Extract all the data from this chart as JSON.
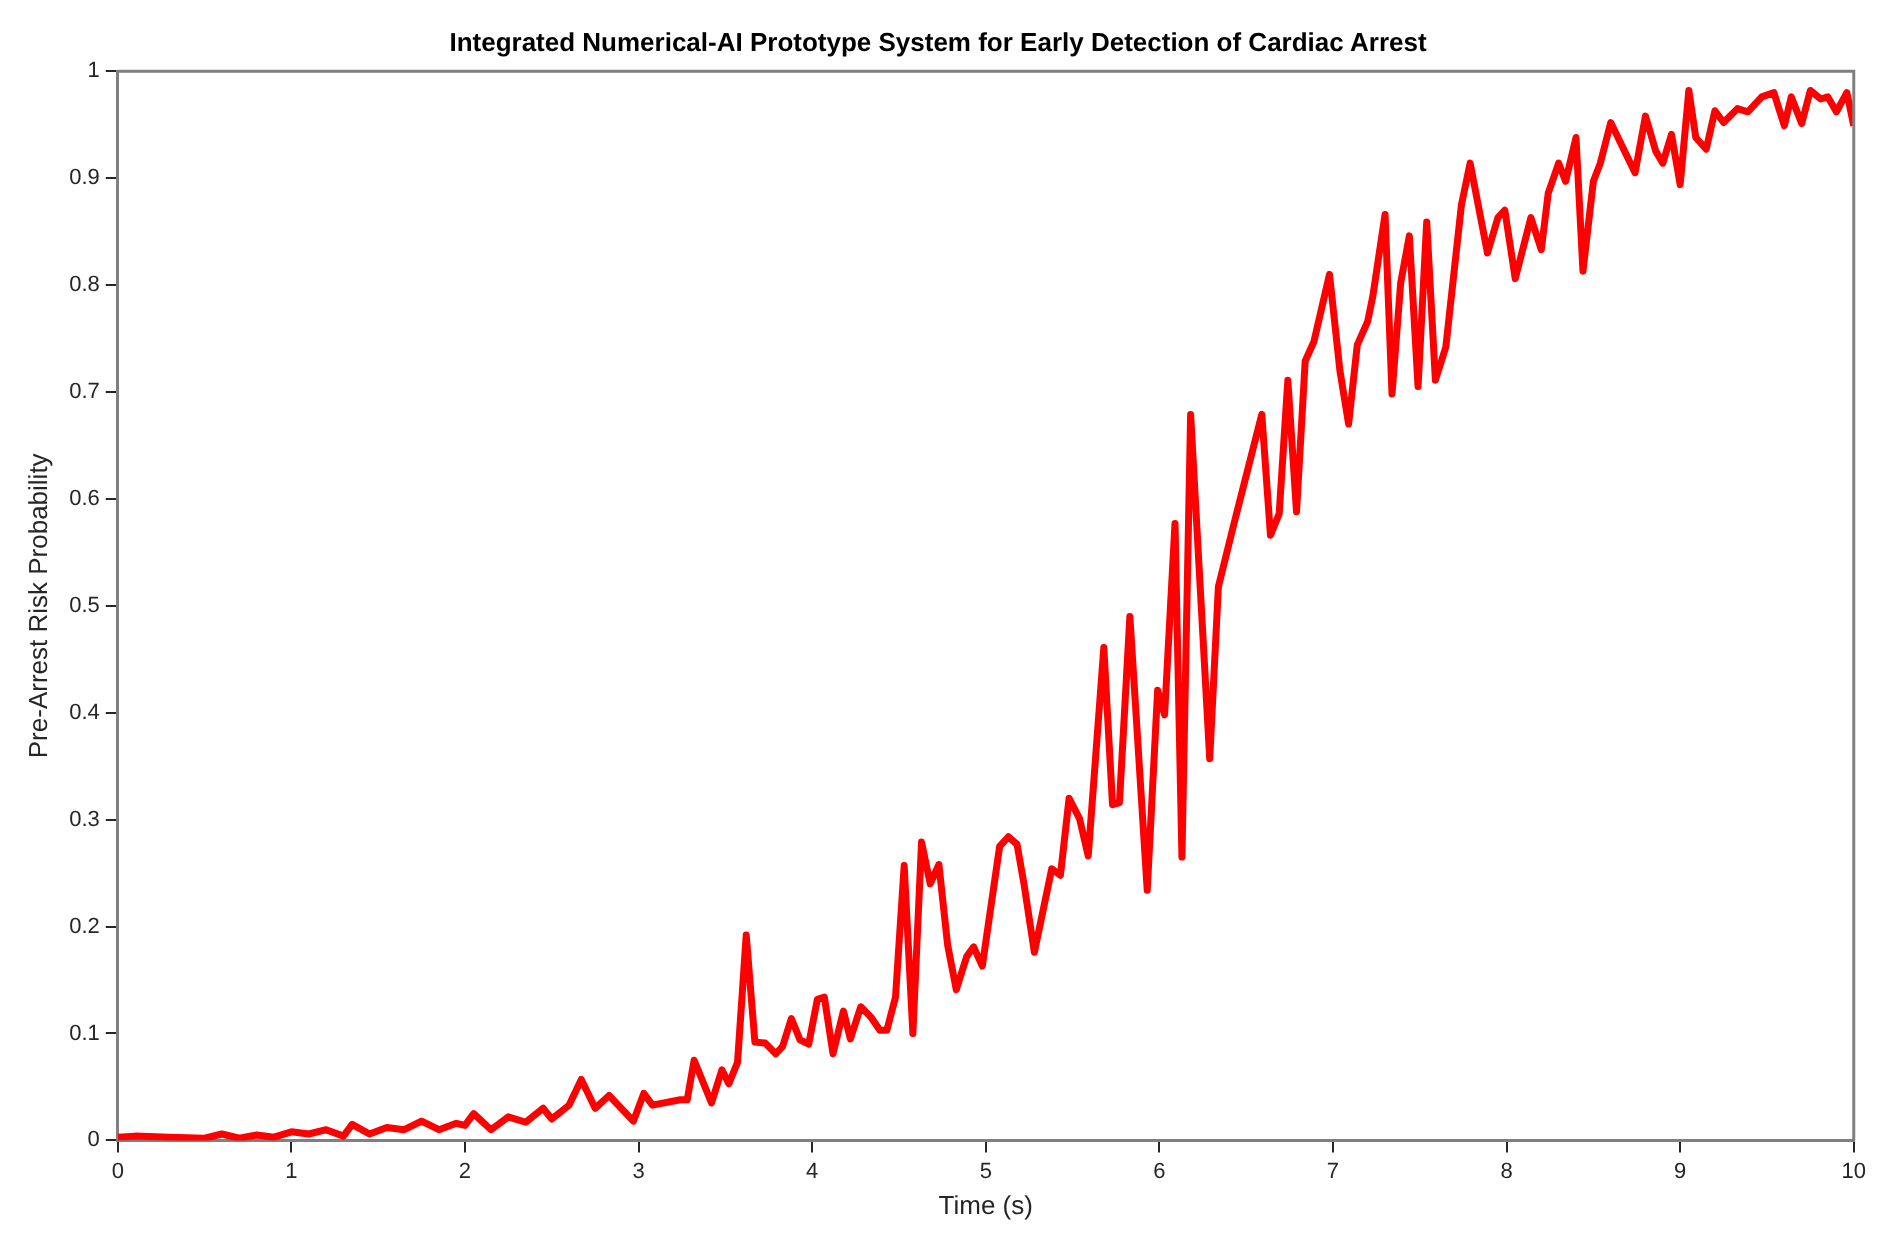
{
  "chart_data": {
    "type": "line",
    "title": "Integrated Numerical-AI Prototype System for Early Detection of Cardiac Arrest",
    "xlabel": "Time (s)",
    "ylabel": "Pre-Arrest Risk Probability",
    "xlim": [
      0,
      10
    ],
    "xticks": [
      0,
      1,
      2,
      3,
      4,
      5,
      6,
      7,
      8,
      9,
      10
    ],
    "ylim": [
      0,
      1
    ],
    "yticks": [
      0,
      0.1,
      0.2,
      0.3,
      0.4,
      0.5,
      0.6,
      0.7,
      0.8,
      0.9,
      1
    ],
    "grid": false,
    "legend": false,
    "marker": "none",
    "line_style": "solid",
    "series": [
      {
        "color": "#ff0000",
        "x": [
          0,
          0.1,
          0.3,
          0.5,
          0.6,
          0.7,
          0.8,
          0.9,
          1.0,
          1.1,
          1.2,
          1.3,
          1.35,
          1.45,
          1.55,
          1.65,
          1.75,
          1.85,
          1.95,
          2.0,
          2.05,
          2.15,
          2.25,
          2.35,
          2.45,
          2.5,
          2.6,
          2.67,
          2.75,
          2.83,
          2.97,
          3.03,
          3.08,
          3.24,
          3.28,
          3.32,
          3.42,
          3.48,
          3.52,
          3.57,
          3.62,
          3.67,
          3.73,
          3.79,
          3.83,
          3.88,
          3.93,
          3.98,
          4.03,
          4.07,
          4.12,
          4.18,
          4.22,
          4.28,
          4.34,
          4.39,
          4.43,
          4.48,
          4.53,
          4.58,
          4.63,
          4.68,
          4.73,
          4.78,
          4.83,
          4.89,
          4.93,
          4.98,
          5.08,
          5.13,
          5.18,
          5.22,
          5.28,
          5.38,
          5.43,
          5.48,
          5.54,
          5.59,
          5.68,
          5.73,
          5.77,
          5.83,
          5.93,
          5.99,
          6.03,
          6.09,
          6.13,
          6.18,
          6.29,
          6.34,
          6.43,
          6.59,
          6.64,
          6.69,
          6.74,
          6.79,
          6.84,
          6.89,
          6.98,
          7.04,
          7.09,
          7.14,
          7.2,
          7.23,
          7.3,
          7.34,
          7.39,
          7.44,
          7.49,
          7.54,
          7.59,
          7.65,
          7.74,
          7.79,
          7.89,
          7.95,
          7.99,
          8.05,
          8.14,
          8.2,
          8.24,
          8.3,
          8.34,
          8.4,
          8.44,
          8.5,
          8.54,
          8.6,
          8.74,
          8.8,
          8.86,
          8.9,
          8.95,
          9.0,
          9.05,
          9.09,
          9.15,
          9.2,
          9.25,
          9.33,
          9.39,
          9.47,
          9.54,
          9.6,
          9.64,
          9.7,
          9.75,
          9.81,
          9.85,
          9.9,
          9.96,
          10.0
        ],
        "values": [
          0.003,
          0.004,
          0.003,
          0.002,
          0.006,
          0.002,
          0.005,
          0.003,
          0.008,
          0.006,
          0.01,
          0.004,
          0.015,
          0.006,
          0.012,
          0.01,
          0.018,
          0.01,
          0.016,
          0.014,
          0.025,
          0.01,
          0.022,
          0.017,
          0.03,
          0.02,
          0.033,
          0.057,
          0.03,
          0.042,
          0.018,
          0.044,
          0.033,
          0.038,
          0.038,
          0.075,
          0.035,
          0.066,
          0.053,
          0.073,
          0.192,
          0.092,
          0.091,
          0.081,
          0.088,
          0.114,
          0.094,
          0.09,
          0.132,
          0.134,
          0.081,
          0.121,
          0.095,
          0.125,
          0.115,
          0.103,
          0.103,
          0.134,
          0.257,
          0.1,
          0.279,
          0.24,
          0.258,
          0.183,
          0.141,
          0.172,
          0.181,
          0.163,
          0.275,
          0.284,
          0.277,
          0.24,
          0.176,
          0.254,
          0.248,
          0.32,
          0.301,
          0.266,
          0.461,
          0.314,
          0.316,
          0.49,
          0.234,
          0.421,
          0.398,
          0.577,
          0.265,
          0.679,
          0.357,
          0.518,
          0.577,
          0.679,
          0.566,
          0.586,
          0.711,
          0.588,
          0.729,
          0.747,
          0.81,
          0.72,
          0.67,
          0.744,
          0.766,
          0.79,
          0.866,
          0.698,
          0.802,
          0.846,
          0.705,
          0.859,
          0.711,
          0.742,
          0.875,
          0.914,
          0.83,
          0.863,
          0.87,
          0.806,
          0.863,
          0.833,
          0.886,
          0.914,
          0.897,
          0.938,
          0.813,
          0.897,
          0.914,
          0.952,
          0.905,
          0.958,
          0.925,
          0.914,
          0.941,
          0.894,
          0.982,
          0.938,
          0.927,
          0.963,
          0.952,
          0.965,
          0.962,
          0.976,
          0.98,
          0.949,
          0.976,
          0.951,
          0.982,
          0.974,
          0.976,
          0.962,
          0.98,
          0.949
        ]
      }
    ]
  }
}
